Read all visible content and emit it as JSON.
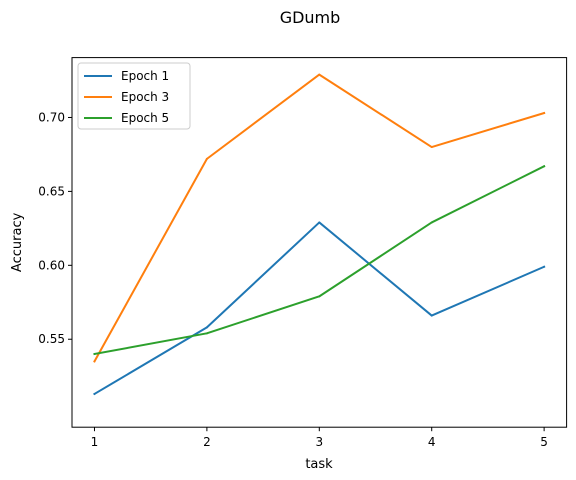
{
  "chart_data": {
    "type": "line",
    "title": "GDumb",
    "xlabel": "task",
    "ylabel": "Accuracy",
    "x": [
      1,
      2,
      3,
      4,
      5
    ],
    "xlim": [
      0.8,
      5.2
    ],
    "ylim": [
      0.4905,
      0.7405
    ],
    "xticks": [
      1,
      2,
      3,
      4,
      5
    ],
    "yticks": [
      0.55,
      0.6,
      0.65,
      0.7
    ],
    "ytick_labels": [
      "0.55",
      "0.60",
      "0.65",
      "0.70"
    ],
    "grid": false,
    "legend": "top-left",
    "series": [
      {
        "name": "Epoch 1",
        "color": "#1f77b4",
        "values": [
          0.513,
          0.558,
          0.629,
          0.566,
          0.599
        ]
      },
      {
        "name": "Epoch 3",
        "color": "#ff7f0e",
        "values": [
          0.535,
          0.672,
          0.729,
          0.68,
          0.703
        ]
      },
      {
        "name": "Epoch 5",
        "color": "#2ca02c",
        "values": [
          0.54,
          0.554,
          0.579,
          0.629,
          0.667
        ]
      }
    ]
  }
}
